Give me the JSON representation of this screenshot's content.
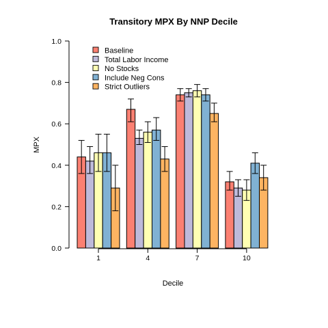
{
  "chart_data": {
    "type": "bar",
    "title": "Transitory MPX By NNP Decile",
    "xlabel": "Decile",
    "ylabel": "MPX",
    "ylim": [
      0,
      1
    ],
    "yticks": [
      "0.0",
      "0.2",
      "0.4",
      "0.6",
      "0.8",
      "1.0"
    ],
    "categories": [
      "1",
      "4",
      "7",
      "10"
    ],
    "legend_position": "top-left",
    "grid": false,
    "error_bars": true,
    "series": [
      {
        "name": "Baseline",
        "color": "#FB8072",
        "values": [
          0.44,
          0.67,
          0.74,
          0.32
        ],
        "lower": [
          0.36,
          0.61,
          0.71,
          0.28
        ],
        "upper": [
          0.52,
          0.72,
          0.77,
          0.37
        ]
      },
      {
        "name": "Total Labor Income",
        "color": "#BEBADA",
        "values": [
          0.42,
          0.53,
          0.75,
          0.29
        ],
        "lower": [
          0.36,
          0.5,
          0.73,
          0.25
        ],
        "upper": [
          0.49,
          0.57,
          0.77,
          0.33
        ]
      },
      {
        "name": "No Stocks",
        "color": "#FFFFB3",
        "values": [
          0.46,
          0.56,
          0.76,
          0.28
        ],
        "lower": [
          0.37,
          0.51,
          0.73,
          0.23
        ],
        "upper": [
          0.55,
          0.61,
          0.79,
          0.33
        ]
      },
      {
        "name": "Include Neg Cons",
        "color": "#80B1D3",
        "values": [
          0.46,
          0.57,
          0.74,
          0.41
        ],
        "lower": [
          0.37,
          0.52,
          0.71,
          0.36
        ],
        "upper": [
          0.55,
          0.63,
          0.77,
          0.46
        ]
      },
      {
        "name": "Strict Outliers",
        "color": "#FDB462",
        "values": [
          0.29,
          0.43,
          0.65,
          0.34
        ],
        "lower": [
          0.18,
          0.37,
          0.61,
          0.28
        ],
        "upper": [
          0.4,
          0.49,
          0.7,
          0.4
        ]
      }
    ]
  }
}
